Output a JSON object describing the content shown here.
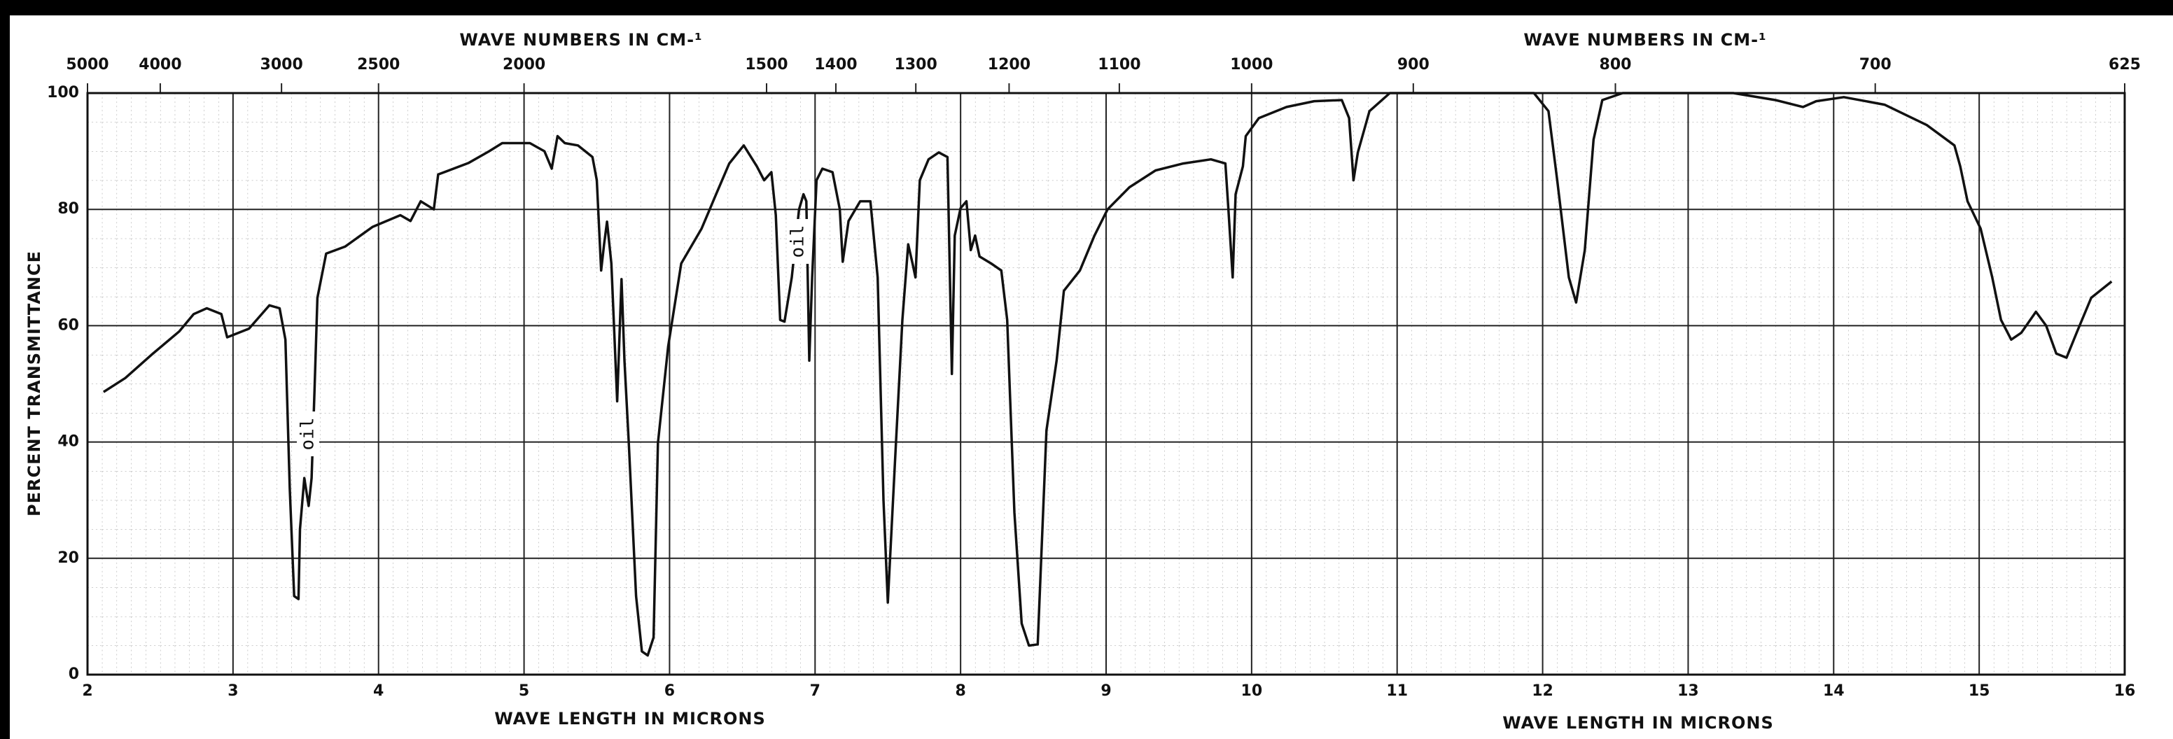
{
  "chart_data": {
    "type": "line",
    "x_label": "WAVE LENGTH IN MICRONS",
    "x2_label": "WAVE NUMBERS IN CM-¹",
    "y_label": "PERCENT TRANSMITTANCE",
    "annotations": [
      "oil",
      "oil"
    ],
    "xlim": [
      2,
      16
    ],
    "xticks": [
      2,
      3,
      4,
      5,
      6,
      7,
      8,
      9,
      10,
      11,
      12,
      13,
      14,
      15,
      16
    ],
    "x2ticks": [
      5000,
      4000,
      3000,
      2500,
      2000,
      1500,
      1400,
      1300,
      1200,
      1100,
      1000,
      900,
      800,
      700,
      625
    ],
    "ylim": [
      0,
      100
    ],
    "yticks": [
      0,
      20,
      40,
      60,
      80,
      100
    ],
    "grid": true,
    "series": [
      {
        "name": "spectrum",
        "color": "#111111",
        "x": [
          2.11,
          2.26,
          2.44,
          2.63,
          2.73,
          2.82,
          2.92,
          2.96,
          3.11,
          3.25,
          3.32,
          3.36,
          3.39,
          3.42,
          3.45,
          3.46,
          3.49,
          3.52,
          3.54,
          3.56,
          3.58,
          3.64,
          3.77,
          3.96,
          4.15,
          4.22,
          4.29,
          4.38,
          4.41,
          4.62,
          4.76,
          4.85,
          5.04,
          5.14,
          5.19,
          5.23,
          5.28,
          5.37,
          5.47,
          5.5,
          5.53,
          5.55,
          5.57,
          5.6,
          5.64,
          5.67,
          5.69,
          5.72,
          5.77,
          5.81,
          5.85,
          5.89,
          5.92,
          5.99,
          6.08,
          6.22,
          6.32,
          6.41,
          6.51,
          6.56,
          6.6,
          6.65,
          6.7,
          6.73,
          6.76,
          6.79,
          6.84,
          6.89,
          6.92,
          6.94,
          6.96,
          6.98,
          7.01,
          7.05,
          7.12,
          7.17,
          7.19,
          7.23,
          7.31,
          7.38,
          7.43,
          7.47,
          7.5,
          7.55,
          7.6,
          7.64,
          7.67,
          7.69,
          7.72,
          7.78,
          7.85,
          7.91,
          7.94,
          7.96,
          8.0,
          8.04,
          8.07,
          8.1,
          8.13,
          8.21,
          8.28,
          8.32,
          8.37,
          8.42,
          8.47,
          8.53,
          8.59,
          8.66,
          8.71,
          8.82,
          8.92,
          9.01,
          9.16,
          9.34,
          9.53,
          9.72,
          9.82,
          9.84,
          9.87,
          9.89,
          9.94,
          9.96,
          10.05,
          10.24,
          10.43,
          10.62,
          10.67,
          10.7,
          10.73,
          10.81,
          10.95,
          11.33,
          11.94,
          12.04,
          12.1,
          12.18,
          12.23,
          12.29,
          12.35,
          12.41,
          12.55,
          13.31,
          13.6,
          13.79,
          13.88,
          14.07,
          14.35,
          14.64,
          14.83,
          14.87,
          14.92,
          15.01,
          15.09,
          15.15,
          15.22,
          15.29,
          15.39,
          15.46,
          15.53,
          15.6,
          15.67,
          15.77,
          15.91
        ],
        "values": [
          48.6,
          51,
          55,
          59,
          62,
          63,
          62,
          58,
          59.5,
          63.5,
          63,
          57.6,
          32,
          13.5,
          13,
          25,
          33.8,
          29,
          33.8,
          49,
          64.8,
          72.4,
          73.6,
          77,
          79,
          78,
          81.4,
          80,
          86,
          88,
          90,
          91.4,
          91.4,
          90,
          87,
          92.6,
          91.4,
          91,
          89,
          85,
          69.5,
          74,
          77.9,
          70.7,
          47,
          68,
          54,
          39.8,
          13.5,
          4,
          3.3,
          6.4,
          39.8,
          56.4,
          70.7,
          76.7,
          82.6,
          87.9,
          91,
          89,
          87.4,
          85,
          86.4,
          79,
          61,
          60.7,
          68.3,
          80,
          82.6,
          81.4,
          54,
          68.3,
          85,
          87,
          86.4,
          80,
          71,
          78,
          81.4,
          81.4,
          68.3,
          30,
          12.4,
          37,
          61,
          74,
          70.7,
          68.3,
          85,
          88.6,
          89.8,
          89,
          51.7,
          75.5,
          80.2,
          81.4,
          73,
          75.5,
          71.9,
          70.7,
          69.5,
          61,
          27.9,
          8.8,
          5,
          5.2,
          42,
          54,
          66,
          69.5,
          75.5,
          80,
          83.8,
          86.7,
          87.9,
          88.6,
          87.9,
          80.2,
          68.3,
          82.6,
          87.4,
          92.6,
          95.7,
          97.6,
          98.6,
          98.8,
          95.7,
          85,
          89.8,
          96.9,
          100,
          100,
          100,
          96.9,
          85,
          68.3,
          64,
          73,
          92,
          98.8,
          100,
          100,
          98.8,
          97.6,
          98.6,
          99.3,
          98,
          94.5,
          91,
          87.4,
          81.4,
          76.7,
          68.3,
          61,
          57.6,
          58.8,
          62.4,
          60,
          55.2,
          54.5,
          58.8,
          64.8,
          67.6
        ]
      }
    ]
  }
}
